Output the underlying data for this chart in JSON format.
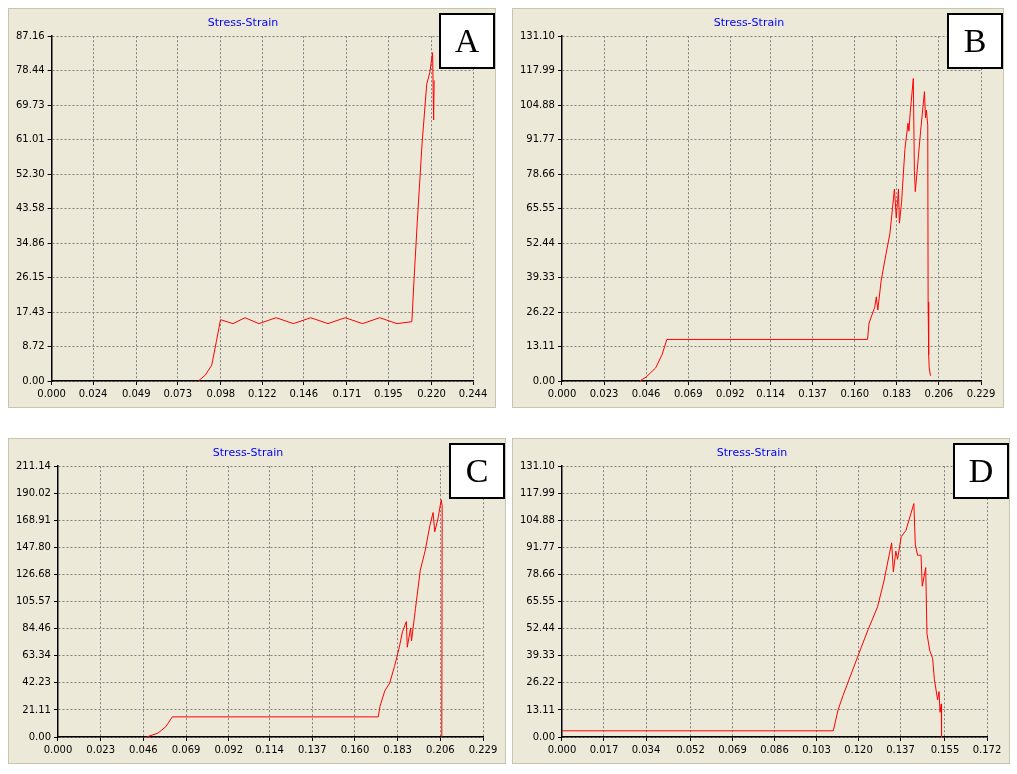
{
  "chart_data": [
    {
      "type": "line",
      "title": "Stress-Strain",
      "annotations": [
        "A"
      ],
      "grid": true,
      "marker": "none",
      "line_style": "solid",
      "xlim": [
        0,
        0.244
      ],
      "ylim": [
        0,
        87.16
      ],
      "xticks": [
        {
          "value": 0,
          "label": "0.000"
        },
        {
          "value": 0.024,
          "label": "0.024"
        },
        {
          "value": 0.049,
          "label": "0.049"
        },
        {
          "value": 0.073,
          "label": "0.073"
        },
        {
          "value": 0.098,
          "label": "0.098"
        },
        {
          "value": 0.122,
          "label": "0.122"
        },
        {
          "value": 0.146,
          "label": "0.146"
        },
        {
          "value": 0.171,
          "label": "0.171"
        },
        {
          "value": 0.195,
          "label": "0.195"
        },
        {
          "value": 0.22,
          "label": "0.220"
        },
        {
          "value": 0.244,
          "label": "0.244"
        }
      ],
      "yticks": [
        {
          "value": 0,
          "label": "0.00"
        },
        {
          "value": 8.72,
          "label": "8.72"
        },
        {
          "value": 17.43,
          "label": "17.43"
        },
        {
          "value": 26.15,
          "label": "26.15"
        },
        {
          "value": 34.86,
          "label": "34.86"
        },
        {
          "value": 43.58,
          "label": "43.58"
        },
        {
          "value": 52.3,
          "label": "52.30"
        },
        {
          "value": 61.01,
          "label": "61.01"
        },
        {
          "value": 69.73,
          "label": "69.73"
        },
        {
          "value": 78.44,
          "label": "78.44"
        },
        {
          "value": 87.16,
          "label": "87.16"
        }
      ],
      "series": [
        {
          "color": "#ff0000",
          "x": [
            0.085,
            0.089,
            0.0927,
            0.0954,
            0.0978,
            0.105,
            0.112,
            0.12,
            0.13,
            0.14,
            0.15,
            0.16,
            0.17,
            0.18,
            0.19,
            0.2,
            0.2086,
            0.2099,
            0.2117,
            0.2145,
            0.2172,
            0.219,
            0.2206,
            0.2212,
            0.2215
          ],
          "values": [
            0,
            1.5,
            4,
            10,
            15.5,
            14.5,
            16,
            14.5,
            16,
            14.5,
            16,
            14.5,
            16,
            14.5,
            16,
            14.5,
            15,
            26,
            40,
            60,
            75,
            78,
            83,
            66,
            76
          ]
        }
      ]
    },
    {
      "type": "line",
      "title": "Stress-Strain",
      "annotations": [
        "B"
      ],
      "grid": true,
      "marker": "none",
      "line_style": "solid",
      "xlim": [
        0,
        0.229
      ],
      "ylim": [
        0,
        131.1
      ],
      "xticks": [
        {
          "value": 0,
          "label": "0.000"
        },
        {
          "value": 0.023,
          "label": "0.023"
        },
        {
          "value": 0.046,
          "label": "0.046"
        },
        {
          "value": 0.069,
          "label": "0.069"
        },
        {
          "value": 0.092,
          "label": "0.092"
        },
        {
          "value": 0.114,
          "label": "0.114"
        },
        {
          "value": 0.137,
          "label": "0.137"
        },
        {
          "value": 0.16,
          "label": "0.160"
        },
        {
          "value": 0.183,
          "label": "0.183"
        },
        {
          "value": 0.206,
          "label": "0.206"
        },
        {
          "value": 0.229,
          "label": "0.229"
        }
      ],
      "yticks": [
        {
          "value": 0,
          "label": "0.00"
        },
        {
          "value": 13.11,
          "label": "13.11"
        },
        {
          "value": 26.22,
          "label": "26.22"
        },
        {
          "value": 39.33,
          "label": "39.33"
        },
        {
          "value": 52.44,
          "label": "52.44"
        },
        {
          "value": 65.55,
          "label": "65.55"
        },
        {
          "value": 78.66,
          "label": "78.66"
        },
        {
          "value": 91.77,
          "label": "91.77"
        },
        {
          "value": 104.88,
          "label": "104.88"
        },
        {
          "value": 117.99,
          "label": "117.99"
        },
        {
          "value": 131.1,
          "label": "131.10"
        }
      ],
      "series": [
        {
          "color": "#ff0000",
          "x": [
            0.0425,
            0.046,
            0.0512,
            0.0547,
            0.0573,
            0.167,
            0.1678,
            0.1709,
            0.1718,
            0.1726,
            0.1744,
            0.177,
            0.1792,
            0.1817,
            0.1827,
            0.1839,
            0.1844,
            0.1856,
            0.1874,
            0.1891,
            0.1896,
            0.1903,
            0.192,
            0.1926,
            0.1931,
            0.196,
            0.1981,
            0.1987,
            0.1992,
            0.1999,
            0.2001,
            0.2004,
            0.2007,
            0.2014
          ],
          "values": [
            0,
            1.5,
            5,
            10,
            15.8,
            15.8,
            22,
            28,
            32,
            27,
            38,
            48,
            56,
            73,
            62,
            73,
            60,
            68,
            88,
            98,
            95,
            102,
            115,
            80,
            72,
            95,
            110,
            100,
            103,
            97,
            30,
            10,
            5,
            2
          ]
        }
      ]
    },
    {
      "type": "line",
      "title": "Stress-Strain",
      "annotations": [
        "C"
      ],
      "grid": true,
      "marker": "none",
      "line_style": "solid",
      "xlim": [
        0,
        0.229
      ],
      "ylim": [
        0,
        211.14
      ],
      "xticks": [
        {
          "value": 0,
          "label": "0.000"
        },
        {
          "value": 0.023,
          "label": "0.023"
        },
        {
          "value": 0.046,
          "label": "0.046"
        },
        {
          "value": 0.069,
          "label": "0.069"
        },
        {
          "value": 0.092,
          "label": "0.092"
        },
        {
          "value": 0.114,
          "label": "0.114"
        },
        {
          "value": 0.137,
          "label": "0.137"
        },
        {
          "value": 0.16,
          "label": "0.160"
        },
        {
          "value": 0.183,
          "label": "0.183"
        },
        {
          "value": 0.206,
          "label": "0.206"
        },
        {
          "value": 0.229,
          "label": "0.229"
        }
      ],
      "yticks": [
        {
          "value": 0,
          "label": "0.00"
        },
        {
          "value": 21.11,
          "label": "21.11"
        },
        {
          "value": 42.23,
          "label": "42.23"
        },
        {
          "value": 63.34,
          "label": "63.34"
        },
        {
          "value": 84.46,
          "label": "84.46"
        },
        {
          "value": 105.57,
          "label": "105.57"
        },
        {
          "value": 126.68,
          "label": "126.68"
        },
        {
          "value": 147.8,
          "label": "147.80"
        },
        {
          "value": 168.91,
          "label": "168.91"
        },
        {
          "value": 190.02,
          "label": "190.02"
        },
        {
          "value": 211.14,
          "label": "211.14"
        }
      ],
      "series": [
        {
          "color": "#ff0000",
          "x": [
            0.0477,
            0.0538,
            0.0581,
            0.0616,
            0.1726,
            0.1735,
            0.1761,
            0.1787,
            0.1813,
            0.1839,
            0.1856,
            0.1877,
            0.1882,
            0.19,
            0.1905,
            0.1926,
            0.1952,
            0.1978,
            0.2004,
            0.2021,
            0.203,
            0.2047,
            0.2065,
            0.207,
            0.2068
          ],
          "values": [
            0,
            3,
            8,
            15.7,
            15.7,
            24,
            36,
            42,
            55,
            70,
            82,
            90,
            70,
            85,
            75,
            100,
            130,
            145,
            165,
            175,
            160,
            170,
            185,
            180,
            0
          ]
        }
      ]
    },
    {
      "type": "line",
      "title": "Stress-Strain",
      "annotations": [
        "D"
      ],
      "grid": true,
      "marker": "none",
      "line_style": "solid",
      "xlim": [
        0,
        0.172
      ],
      "ylim": [
        0,
        131.1
      ],
      "xticks": [
        {
          "value": 0,
          "label": "0.000"
        },
        {
          "value": 0.017,
          "label": "0.017"
        },
        {
          "value": 0.034,
          "label": "0.034"
        },
        {
          "value": 0.052,
          "label": "0.052"
        },
        {
          "value": 0.069,
          "label": "0.069"
        },
        {
          "value": 0.086,
          "label": "0.086"
        },
        {
          "value": 0.103,
          "label": "0.103"
        },
        {
          "value": 0.12,
          "label": "0.120"
        },
        {
          "value": 0.137,
          "label": "0.137"
        },
        {
          "value": 0.155,
          "label": "0.155"
        },
        {
          "value": 0.172,
          "label": "0.172"
        }
      ],
      "yticks": [
        {
          "value": 0,
          "label": "0.00"
        },
        {
          "value": 13.11,
          "label": "13.11"
        },
        {
          "value": 26.22,
          "label": "26.22"
        },
        {
          "value": 39.33,
          "label": "39.33"
        },
        {
          "value": 52.44,
          "label": "52.44"
        },
        {
          "value": 65.55,
          "label": "65.55"
        },
        {
          "value": 78.66,
          "label": "78.66"
        },
        {
          "value": 91.77,
          "label": "91.77"
        },
        {
          "value": 104.88,
          "label": "104.88"
        },
        {
          "value": 117.99,
          "label": "117.99"
        },
        {
          "value": 131.1,
          "label": "131.10"
        }
      ],
      "series": [
        {
          "color": "#ff0000",
          "x": [
            0,
            0.1098,
            0.1117,
            0.1137,
            0.1175,
            0.1213,
            0.1239,
            0.1277,
            0.1302,
            0.1334,
            0.1341,
            0.1351,
            0.1358,
            0.1373,
            0.1392,
            0.1424,
            0.143,
            0.1439,
            0.1453,
            0.1458,
            0.1472,
            0.1477,
            0.1488,
            0.15,
            0.1507,
            0.152,
            0.1526,
            0.153,
            0.1535,
            0.1536
          ],
          "values": [
            3,
            3,
            13,
            20,
            32,
            44,
            52,
            63,
            75,
            94,
            80,
            90,
            86,
            97,
            100,
            113,
            93,
            88,
            88,
            73,
            82,
            50,
            42,
            38,
            28,
            18,
            22,
            12,
            16,
            0
          ]
        }
      ]
    }
  ]
}
